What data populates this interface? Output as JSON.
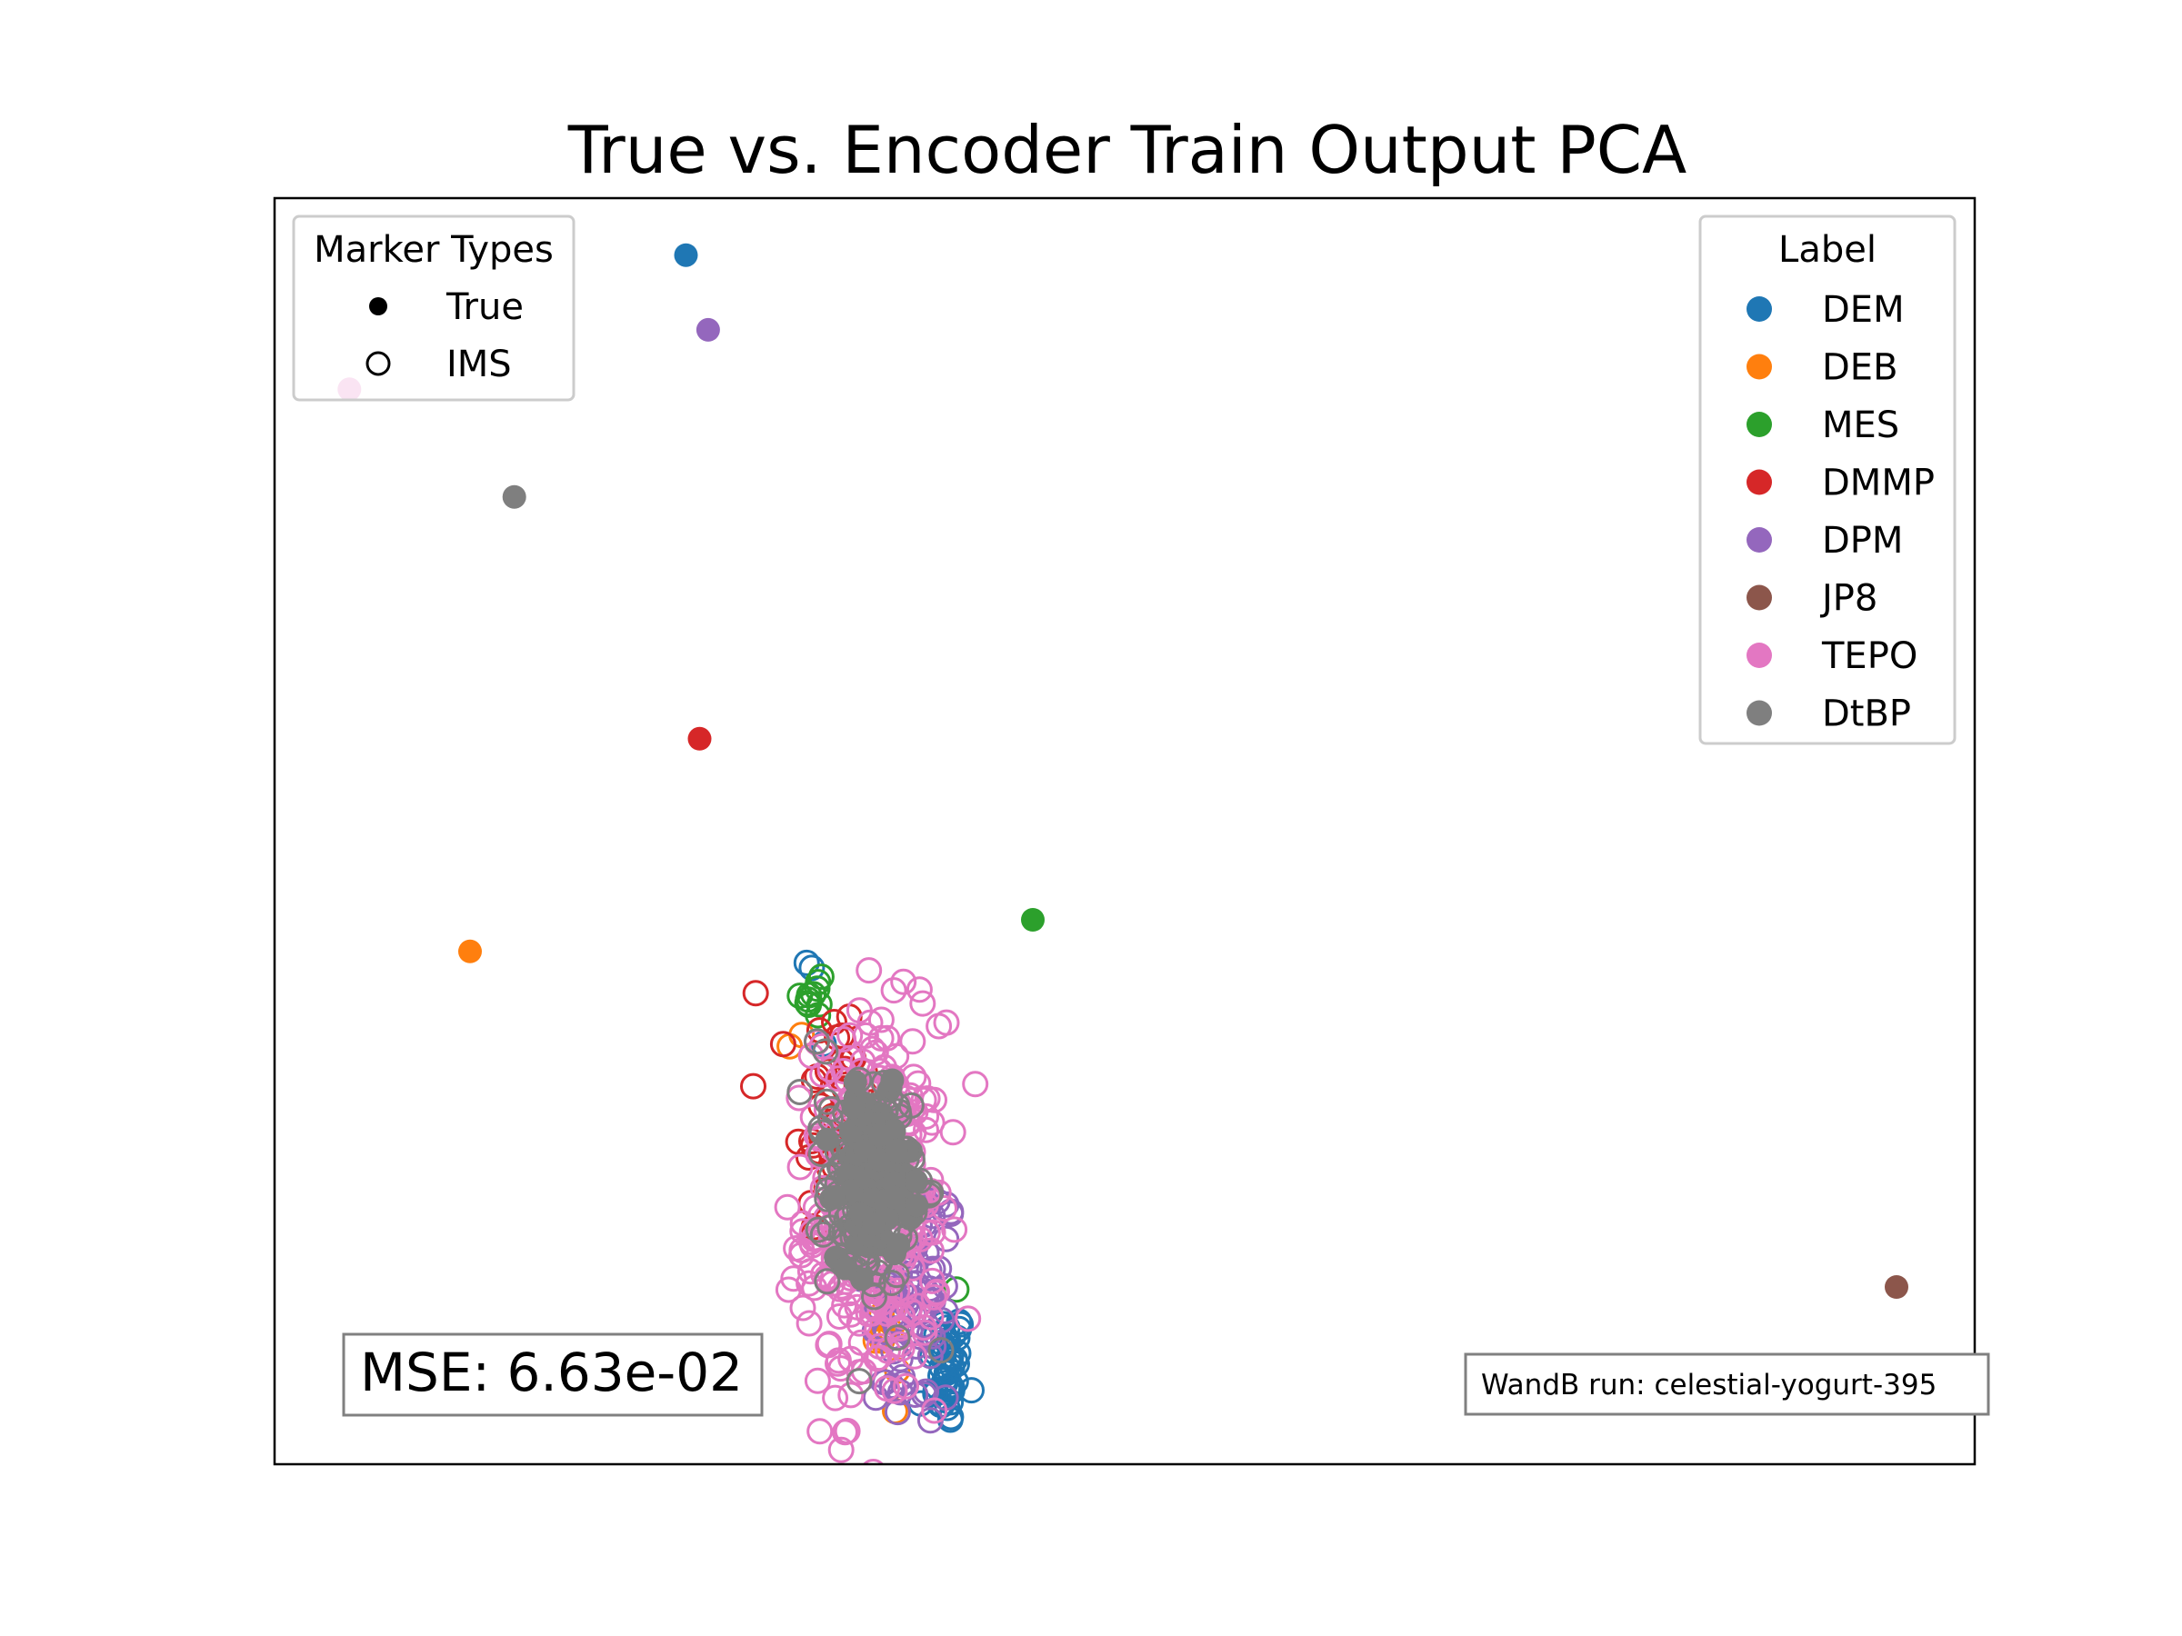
{
  "chart_data": {
    "type": "scatter",
    "title": "True vs. Encoder Train Output PCA",
    "xlabel": "",
    "ylabel": "",
    "grid": false,
    "axes_visible": false,
    "xlim": [
      0,
      100
    ],
    "ylim": [
      0,
      100
    ],
    "marker_legend": {
      "title": "Marker Types",
      "placement": "upper-left",
      "entries": [
        {
          "label": "True",
          "marker": "filled"
        },
        {
          "label": "IMS",
          "marker": "hollow"
        }
      ]
    },
    "label_legend": {
      "title": "Label",
      "placement": "upper-right",
      "entries": [
        "DEM",
        "DEB",
        "MES",
        "DMMP",
        "DPM",
        "JP8",
        "TEPO",
        "DtBP"
      ]
    },
    "series": [
      {
        "name": "DEM",
        "color": "#1f77b4",
        "true_points": [
          [
            24.2,
            95.5
          ]
        ],
        "ims_cluster": {
          "center": [
            39.6,
            7.6
          ],
          "spread": [
            0.5,
            2.4
          ],
          "count": 45
        },
        "ims_extra": [
          [
            31.6,
            39.2
          ],
          [
            31.3,
            39.6
          ],
          [
            32.3,
            33.2
          ],
          [
            38.0,
            4.8
          ]
        ]
      },
      {
        "name": "DEB",
        "color": "#ff7f0e",
        "true_points": [
          [
            11.5,
            40.5
          ]
        ],
        "ims_cluster": {
          "center": [
            36.5,
            9.8
          ],
          "spread": [
            0.6,
            1.5
          ],
          "count": 10
        },
        "ims_extra": [
          [
            31.0,
            33.9
          ],
          [
            30.3,
            33.0
          ],
          [
            36.5,
            4.2
          ]
        ]
      },
      {
        "name": "MES",
        "color": "#2ca02c",
        "true_points": [
          [
            44.6,
            43.0
          ]
        ],
        "ims_cluster": {
          "center": [
            31.8,
            37.5
          ],
          "spread": [
            0.6,
            1.2
          ],
          "count": 10
        },
        "ims_extra": [
          [
            40.1,
            13.8
          ],
          [
            30.9,
            37.0
          ]
        ]
      },
      {
        "name": "DMMP",
        "color": "#d62728",
        "true_points": [
          [
            25.0,
            57.3
          ]
        ],
        "ims_cluster": {
          "center": [
            33.0,
            27.5
          ],
          "spread": [
            1.2,
            5.0
          ],
          "count": 55
        },
        "ims_extra": [
          [
            28.3,
            37.2
          ],
          [
            31.8,
            18.5
          ]
        ]
      },
      {
        "name": "DPM",
        "color": "#9467bd",
        "true_points": [
          [
            25.5,
            89.6
          ]
        ],
        "ims_cluster": {
          "center": [
            37.5,
            13.0
          ],
          "spread": [
            1.4,
            5.5
          ],
          "count": 90
        },
        "ims_extra": [
          [
            36.3,
            6.2
          ],
          [
            35.8,
            6.5
          ]
        ]
      },
      {
        "name": "JP8",
        "color": "#8c564b",
        "true_points": [
          [
            95.4,
            14.0
          ]
        ],
        "ims_cluster": {
          "center": [
            37.0,
            18.0
          ],
          "spread": [
            0.5,
            0.5
          ],
          "count": 0
        },
        "ims_extra": []
      },
      {
        "name": "TEPO",
        "color": "#e377c2",
        "true_points": [
          [
            4.4,
            84.9
          ]
        ],
        "ims_cluster": {
          "center": [
            35.2,
            20.0
          ],
          "spread": [
            2.0,
            7.5
          ],
          "count": 340
        },
        "ims_extra": [
          [
            34.6,
            31.8
          ],
          [
            35.6,
            30.5
          ],
          [
            36.7,
            28.5
          ]
        ]
      },
      {
        "name": "DtBP",
        "color": "#7f7f7f",
        "true_points": [
          [
            14.1,
            76.4
          ]
        ],
        "ims_cluster": {
          "center": [
            35.0,
            22.0
          ],
          "spread": [
            1.2,
            4.0
          ],
          "count": 160
        },
        "ims_extra": [
          [
            30.9,
            29.4
          ],
          [
            32.2,
            26.2
          ],
          [
            32.7,
            27.3
          ],
          [
            31.9,
            33.4
          ],
          [
            32.4,
            32.6
          ],
          [
            39.2,
            9.0
          ]
        ]
      }
    ],
    "annotations": [
      {
        "text": "MSE: 6.63e-02",
        "placement": "lower-left",
        "boxed": true
      },
      {
        "text": "WandB run: celestial-yogurt-395",
        "placement": "lower-right",
        "boxed": true
      }
    ]
  }
}
